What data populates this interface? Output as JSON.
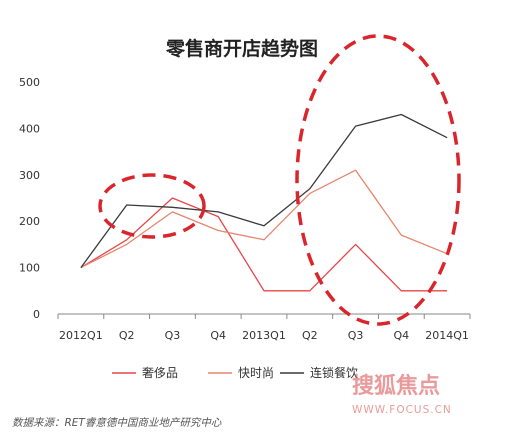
{
  "chart_data": {
    "type": "line",
    "title": "零售商开店趋势图",
    "categories": [
      "2012Q1",
      "Q2",
      "Q3",
      "Q4",
      "2013Q1",
      "Q2",
      "Q3",
      "Q4",
      "2014Q1"
    ],
    "ylim": [
      0,
      500
    ],
    "yticks": [
      0,
      100,
      200,
      300,
      400,
      500
    ],
    "xlabel": "",
    "ylabel": "",
    "grid": false,
    "legend_position": "bottom",
    "series": [
      {
        "name": "奢侈品",
        "color": "#e8474a",
        "points": [
          [
            0,
            100
          ],
          [
            0.5,
            160
          ],
          [
            1,
            250
          ],
          [
            1.5,
            210
          ],
          [
            2,
            50
          ],
          [
            2.5,
            50
          ],
          [
            3,
            150
          ],
          [
            3.5,
            50
          ],
          [
            4,
            50
          ]
        ]
      },
      {
        "name": "快时尚",
        "color": "#e6866f",
        "points": [
          [
            0,
            100
          ],
          [
            0.5,
            150
          ],
          [
            1,
            220
          ],
          [
            1.5,
            180
          ],
          [
            2,
            160
          ],
          [
            2.5,
            260
          ],
          [
            3,
            310
          ],
          [
            3.5,
            170
          ],
          [
            4,
            130
          ]
        ]
      },
      {
        "name": "连锁餐饮",
        "color": "#3a3a3a",
        "points": [
          [
            0,
            100
          ],
          [
            0.5,
            235
          ],
          [
            1,
            230
          ],
          [
            1.5,
            220
          ],
          [
            2,
            190
          ],
          [
            2.5,
            270
          ],
          [
            3,
            405
          ],
          [
            3.5,
            430
          ],
          [
            4,
            380
          ]
        ]
      }
    ],
    "source": "数据来源：RET睿意德中国商业地产研究中心",
    "watermark": {
      "text": "搜狐焦点",
      "url": "WWW.FOCUS.CN"
    }
  }
}
